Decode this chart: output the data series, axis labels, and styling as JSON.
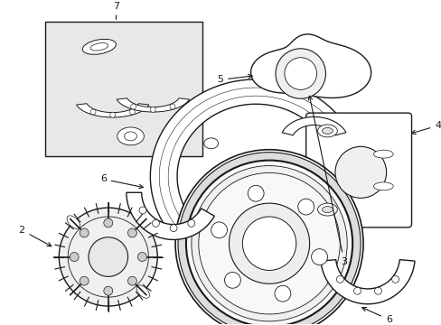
{
  "bg_color": "#ffffff",
  "line_color": "#1a1a1a",
  "box_fill": "#e8e8e8",
  "figsize": [
    4.89,
    3.6
  ],
  "dpi": 100
}
